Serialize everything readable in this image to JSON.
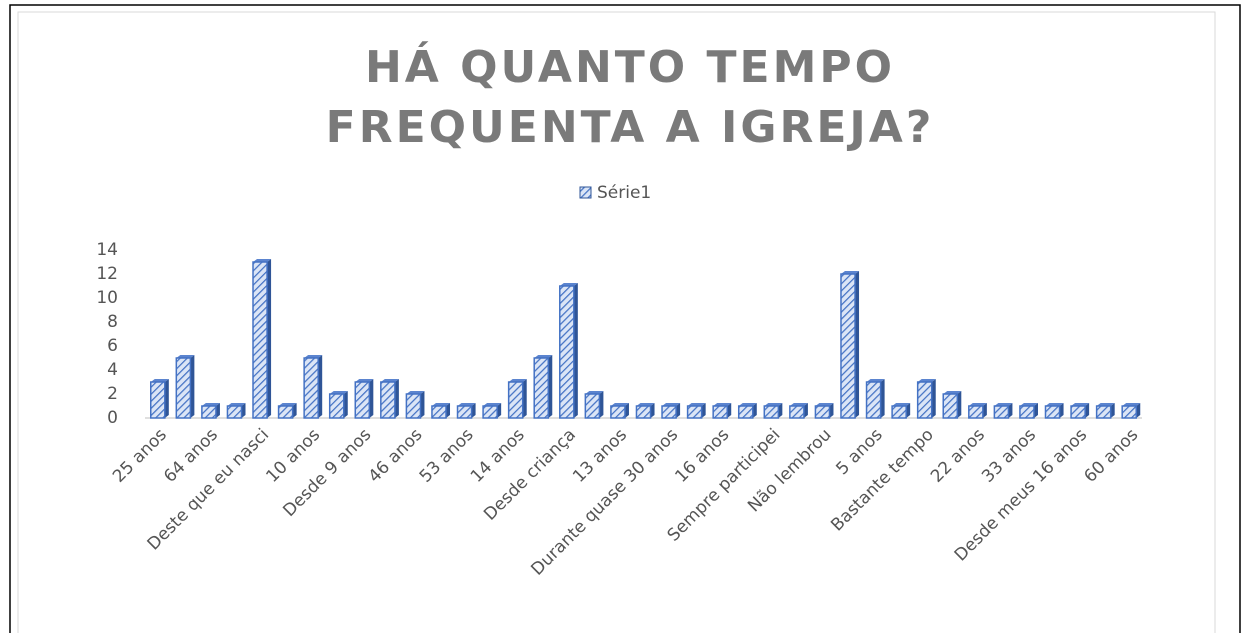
{
  "chart_data": {
    "type": "bar",
    "title": "HÁ QUANTO TEMPO FREQUENTA A IGREJA?",
    "legend": "Série1",
    "color": "#4472c4",
    "categories": [
      "25 anos",
      null,
      "64 anos",
      null,
      "Deste que eu nasci",
      null,
      "10 anos",
      null,
      "Desde 9 anos",
      null,
      "46 anos",
      null,
      "53 anos",
      null,
      "14 anos",
      null,
      "Desde criança",
      null,
      "13 anos",
      null,
      "Durante quase 30 anos",
      null,
      "16 anos",
      null,
      "Sempre participei",
      null,
      "Não lembrou",
      null,
      "5 anos",
      null,
      "Bastante tempo",
      null,
      "22 anos",
      null,
      "33 anos",
      null,
      "Desde meus 16 anos",
      null,
      "60 anos"
    ],
    "values": [
      3,
      5,
      1,
      1,
      13,
      1,
      5,
      2,
      3,
      3,
      2,
      1,
      1,
      1,
      3,
      5,
      11,
      2,
      1,
      1,
      1,
      1,
      1,
      1,
      1,
      1,
      1,
      12,
      3,
      1,
      3,
      2,
      1,
      1,
      1,
      1,
      1,
      1,
      1
    ],
    "ylim": [
      0,
      14
    ],
    "yticks": [
      0,
      2,
      4,
      6,
      8,
      10,
      12,
      14
    ],
    "grid": false
  }
}
